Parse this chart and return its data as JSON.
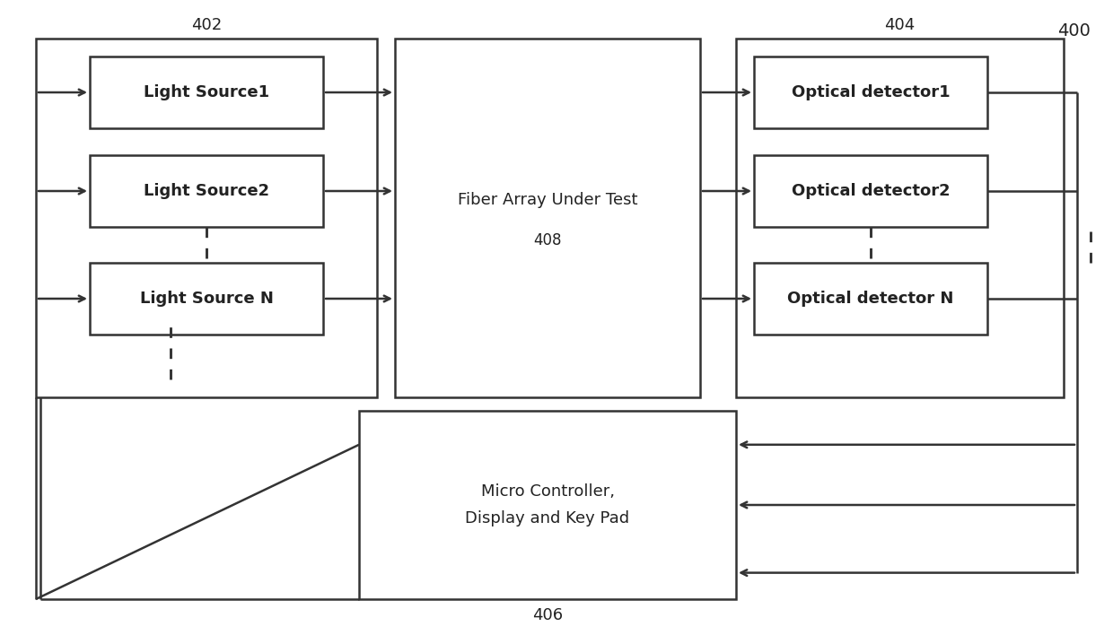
{
  "figure_label": "400",
  "group_402_label": "402",
  "group_404_label": "404",
  "light_sources": [
    "Light Source1",
    "Light Source2",
    "Light Source N"
  ],
  "optical_detectors": [
    "Optical detector1",
    "Optical detector2",
    "Optical detector N"
  ],
  "center_box_label": "Fiber Array Under Test",
  "center_box_sublabel": "408",
  "bottom_box_label": "Micro Controller,\nDisplay and Key Pad",
  "bottom_box_sublabel": "406",
  "bg_color": "#ffffff",
  "box_edge_color": "#333333",
  "box_face_color": "#ffffff",
  "text_color": "#222222",
  "arrow_color": "#333333",
  "dashed_color": "#333333",
  "line_width": 1.8,
  "font_size": 13,
  "ref_font_size": 13
}
